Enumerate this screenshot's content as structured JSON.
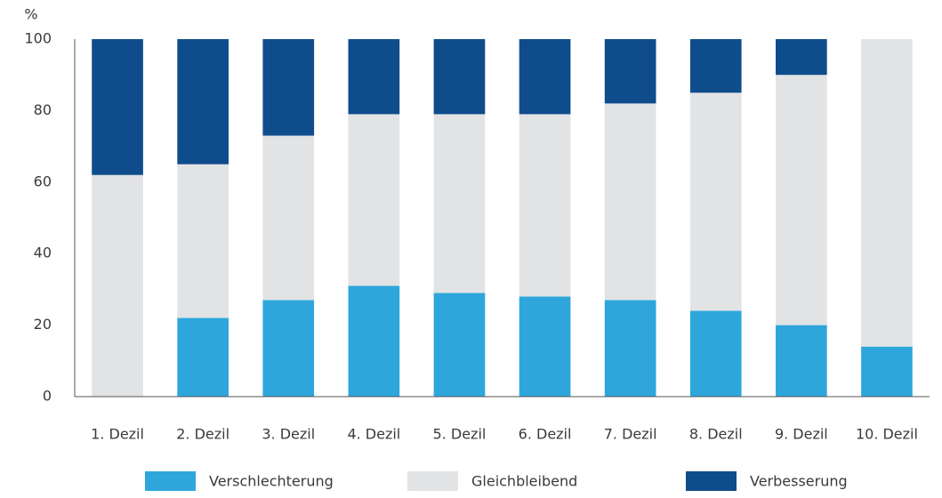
{
  "chart_data": {
    "type": "stacked_bar",
    "ylabel": "%",
    "categories": [
      "1. Dezil",
      "2. Dezil",
      "3. Dezil",
      "4. Dezil",
      "5. Dezil",
      "6. Dezil",
      "7. Dezil",
      "8. Dezil",
      "9. Dezil",
      "10. Dezil"
    ],
    "series": [
      {
        "name": "Verschlechterung",
        "color": "#2ea6dc",
        "values": [
          0,
          22,
          27,
          31,
          29,
          28,
          27,
          24,
          20,
          14
        ]
      },
      {
        "name": "Gleichbleibend",
        "color": "#e2e3e5",
        "values": [
          62,
          43,
          46,
          48,
          50,
          51,
          55,
          61,
          70,
          86
        ]
      },
      {
        "name": "Verbesserung",
        "color": "#0f4c8c",
        "values": [
          38,
          35,
          27,
          21,
          21,
          21,
          18,
          15,
          10,
          0
        ]
      }
    ],
    "ylim": [
      0,
      100
    ],
    "yticks": [
      0,
      20,
      40,
      60,
      80,
      100
    ],
    "grid": false,
    "legend": "bottom"
  }
}
